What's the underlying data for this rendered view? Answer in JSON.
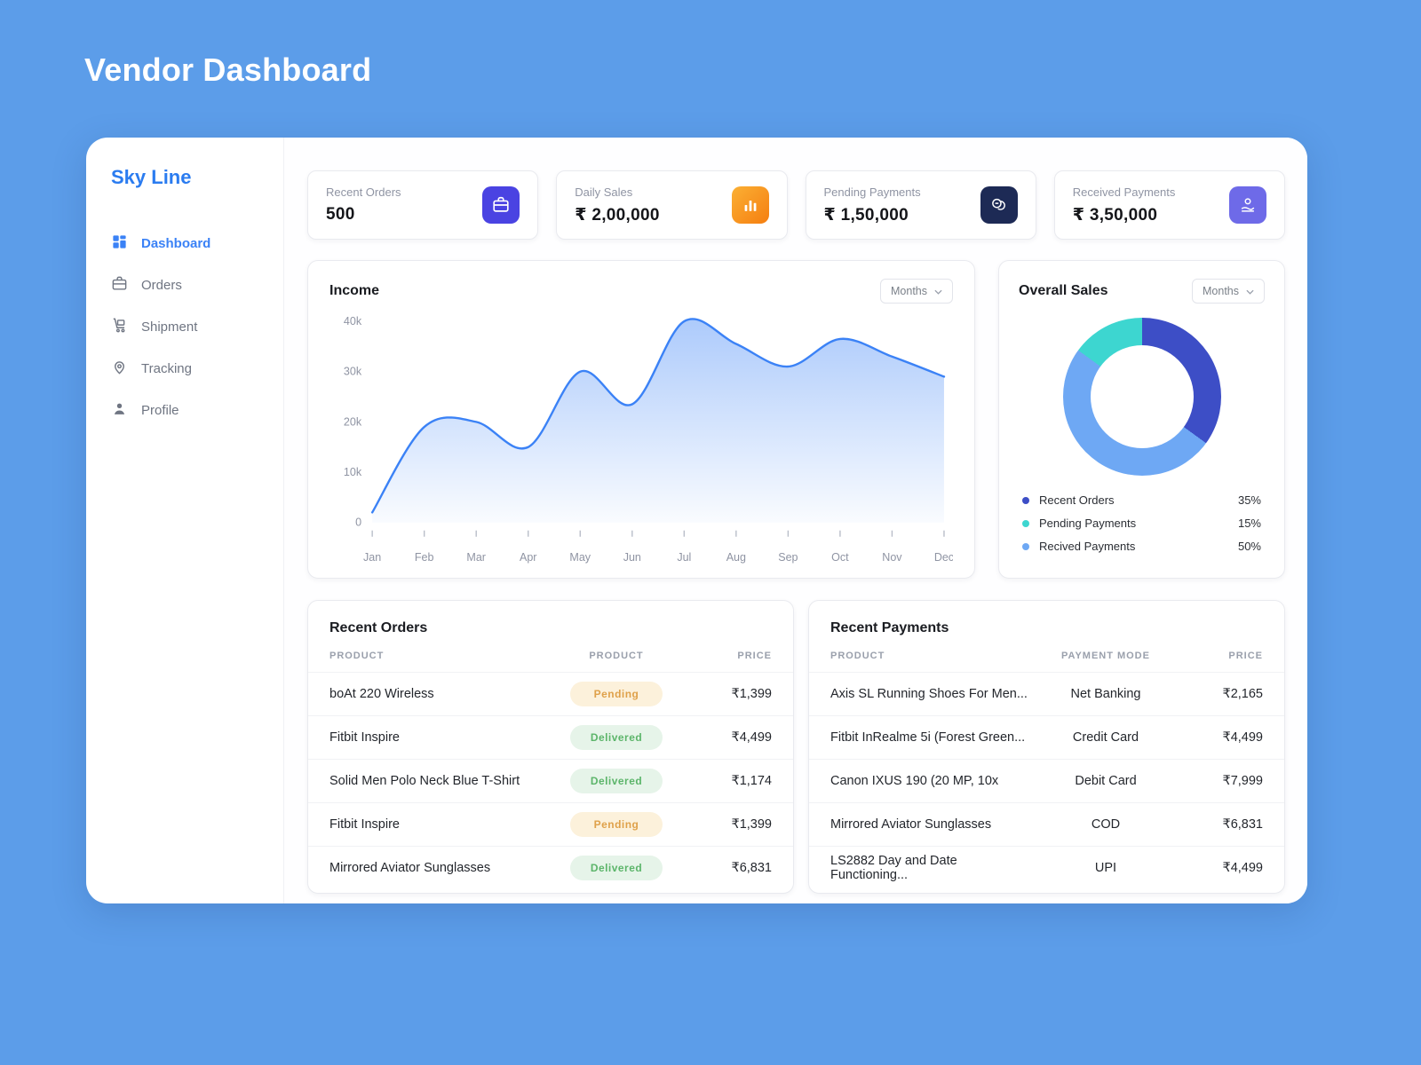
{
  "page": {
    "title": "Vendor Dashboard"
  },
  "sidebar": {
    "brand": "Sky Line",
    "items": [
      {
        "label": "Dashboard",
        "active": true
      },
      {
        "label": "Orders",
        "active": false
      },
      {
        "label": "Shipment",
        "active": false
      },
      {
        "label": "Tracking",
        "active": false
      },
      {
        "label": "Profile",
        "active": false
      }
    ]
  },
  "stats": [
    {
      "label": "Recent Orders",
      "value": "500",
      "icon": "briefcase-icon",
      "color": "#4A43E2"
    },
    {
      "label": "Daily Sales",
      "value": "₹ 2,00,000",
      "icon": "bar-chart-icon",
      "color": "#F57E10"
    },
    {
      "label": "Pending Payments",
      "value": "₹ 1,50,000",
      "icon": "coins-icon",
      "color": "#1D2A55"
    },
    {
      "label": "Received Payments",
      "value": "₹ 3,50,000",
      "icon": "hand-coin-icon",
      "color": "#6E6AE8"
    }
  ],
  "income_card": {
    "title": "Income",
    "period": "Months"
  },
  "overall_sales_card": {
    "title": "Overall Sales",
    "period": "Months",
    "legend": [
      {
        "label": "Recent Orders",
        "pct": "35%"
      },
      {
        "label": "Pending Payments",
        "pct": "15%"
      },
      {
        "label": "Recived Payments",
        "pct": "50%"
      }
    ]
  },
  "recent_orders": {
    "title": "Recent Orders",
    "headers": [
      "PRODUCT",
      "PRODUCT",
      "PRICE"
    ],
    "rows": [
      {
        "product": "boAt 220 Wireless",
        "status": "Pending",
        "price": "₹1,399"
      },
      {
        "product": "Fitbit Inspire",
        "status": "Delivered",
        "price": "₹4,499"
      },
      {
        "product": "Solid Men Polo Neck Blue T-Shirt",
        "status": "Delivered",
        "price": "₹1,174"
      },
      {
        "product": "Fitbit Inspire",
        "status": "Pending",
        "price": "₹1,399"
      },
      {
        "product": "Mirrored Aviator Sunglasses",
        "status": "Delivered",
        "price": "₹6,831"
      }
    ]
  },
  "recent_payments": {
    "title": "Recent Payments",
    "headers": [
      "PRODUCT",
      "PAYMENT MODE",
      "PRICE"
    ],
    "rows": [
      {
        "product": "Axis SL Running Shoes For Men...",
        "mode": "Net Banking",
        "price": "₹2,165"
      },
      {
        "product": "Fitbit InRealme 5i (Forest Green...",
        "mode": "Credit Card",
        "price": "₹4,499"
      },
      {
        "product": "Canon IXUS 190  (20 MP, 10x",
        "mode": "Debit Card",
        "price": "₹7,999"
      },
      {
        "product": "Mirrored Aviator Sunglasses",
        "mode": "COD",
        "price": "₹6,831"
      },
      {
        "product": "LS2882 Day and Date Functioning...",
        "mode": "UPI",
        "price": "₹4,499"
      }
    ]
  },
  "chart_data": [
    {
      "type": "area",
      "title": "Income",
      "x": [
        "Jan",
        "Feb",
        "Mar",
        "Apr",
        "May",
        "Jun",
        "Jul",
        "Aug",
        "Sep",
        "Oct",
        "Nov",
        "Dec"
      ],
      "values": [
        2000,
        19000,
        20000,
        15000,
        30000,
        23500,
        40000,
        35500,
        31000,
        36500,
        33000,
        29000
      ],
      "ylim": [
        0,
        40000
      ],
      "yticks": [
        "0",
        "10k",
        "20k",
        "30k",
        "40k"
      ],
      "xlabel": "",
      "ylabel": "",
      "grid": false,
      "legend_position": "none",
      "line_color": "#3B82F6"
    },
    {
      "type": "pie",
      "title": "Overall Sales",
      "labels": [
        "Recent Orders",
        "Pending Payments",
        "Recived Payments"
      ],
      "values": [
        35,
        15,
        50
      ],
      "colors": [
        "#3D4EC6",
        "#3DD6D0",
        "#6EA8F4"
      ],
      "donut": true,
      "legend_position": "bottom"
    }
  ]
}
